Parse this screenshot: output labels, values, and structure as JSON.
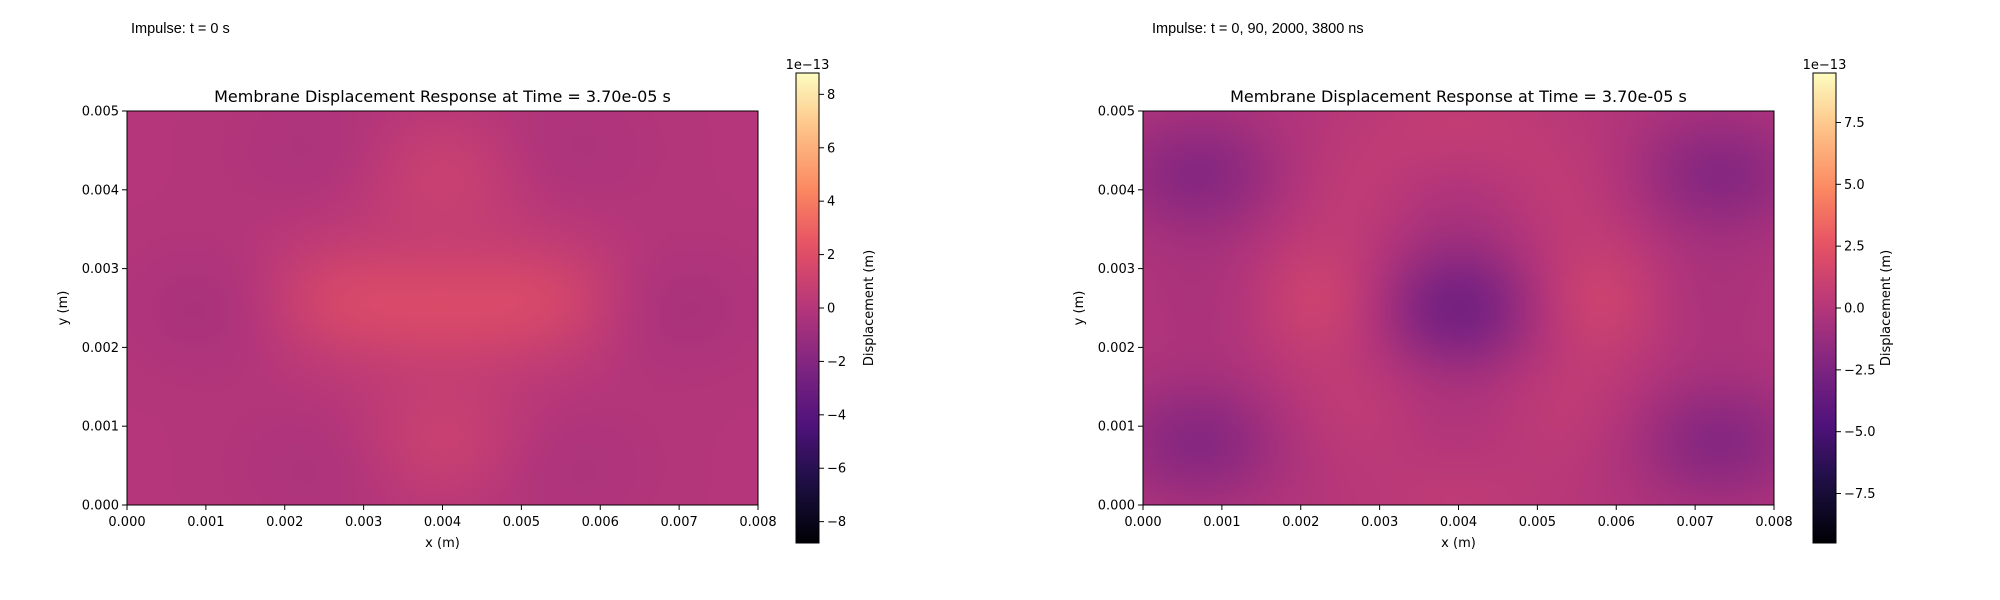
{
  "panels": [
    {
      "impulse_label": "Impulse: t = 0 s"
    },
    {
      "impulse_label": "Impulse: t = 0, 90, 2000, 3800 ns"
    }
  ],
  "chart_data": [
    {
      "type": "heatmap",
      "title": "Membrane Displacement Response at Time = 3.70e-05 s",
      "xlabel": "x (m)",
      "ylabel": "y (m)",
      "xlim": [
        0.0,
        0.008
      ],
      "ylim": [
        0.0,
        0.005
      ],
      "x_ticks": [
        "0.000",
        "0.001",
        "0.002",
        "0.003",
        "0.004",
        "0.005",
        "0.006",
        "0.007",
        "0.008"
      ],
      "y_ticks": [
        "0.000",
        "0.001",
        "0.002",
        "0.003",
        "0.004",
        "0.005"
      ],
      "colormap": "magma",
      "colorbar": {
        "label": "Displacement (m)",
        "offset": "1e−13",
        "vmin": -8.8,
        "vmax": 8.8,
        "ticks": [
          -8,
          -6,
          -4,
          -2,
          0,
          2,
          4,
          6,
          8
        ],
        "tick_labels": [
          "−8",
          "−6",
          "−4",
          "−2",
          "0",
          "2",
          "4",
          "6",
          "8"
        ]
      },
      "field_samples": [
        {
          "x": 0.004,
          "y": 0.0025,
          "value": 1.2
        },
        {
          "x": 0.0026,
          "y": 0.0026,
          "value": 1.3
        },
        {
          "x": 0.0054,
          "y": 0.0026,
          "value": 1.3
        },
        {
          "x": 0.004,
          "y": 0.0042,
          "value": 1.0
        },
        {
          "x": 0.004,
          "y": 0.0008,
          "value": 1.0
        },
        {
          "x": 0.0012,
          "y": 0.0025,
          "value": -0.6
        },
        {
          "x": 0.0068,
          "y": 0.0025,
          "value": -0.6
        },
        {
          "x": 0.0025,
          "y": 0.0045,
          "value": -0.4
        },
        {
          "x": 0.0055,
          "y": 0.0045,
          "value": -0.4
        },
        {
          "x": 0.0025,
          "y": 0.0005,
          "value": -0.4
        },
        {
          "x": 0.0055,
          "y": 0.0005,
          "value": -0.4
        }
      ]
    },
    {
      "type": "heatmap",
      "title": "Membrane Displacement Response at Time = 3.70e-05 s",
      "xlabel": "x (m)",
      "ylabel": "y (m)",
      "xlim": [
        0.0,
        0.008
      ],
      "ylim": [
        0.0,
        0.005
      ],
      "x_ticks": [
        "0.000",
        "0.001",
        "0.002",
        "0.003",
        "0.004",
        "0.005",
        "0.006",
        "0.007",
        "0.008"
      ],
      "y_ticks": [
        "0.000",
        "0.001",
        "0.002",
        "0.003",
        "0.004",
        "0.005"
      ],
      "colormap": "magma",
      "colorbar": {
        "label": "Displacement (m)",
        "offset": "1e−13",
        "vmin": -9.5,
        "vmax": 9.5,
        "ticks": [
          -7.5,
          -5.0,
          -2.5,
          0.0,
          2.5,
          5.0,
          7.5
        ],
        "tick_labels": [
          "−7.5",
          "−5.0",
          "−2.5",
          "0.0",
          "2.5",
          "5.0",
          "7.5"
        ]
      },
      "field_samples": [
        {
          "x": 0.004,
          "y": 0.0025,
          "value": -3.0
        },
        {
          "x": 0.0021,
          "y": 0.0026,
          "value": 1.8
        },
        {
          "x": 0.0059,
          "y": 0.0026,
          "value": 1.8
        },
        {
          "x": 0.004,
          "y": 0.004,
          "value": -0.8
        },
        {
          "x": 0.004,
          "y": 0.0008,
          "value": -0.8
        },
        {
          "x": 0.004,
          "y": 0.0047,
          "value": 0.8
        },
        {
          "x": 0.004,
          "y": 0.0003,
          "value": 0.8
        },
        {
          "x": 0.0007,
          "y": 0.0042,
          "value": -2.0
        },
        {
          "x": 0.0073,
          "y": 0.0042,
          "value": -2.0
        },
        {
          "x": 0.0007,
          "y": 0.0008,
          "value": -2.0
        },
        {
          "x": 0.0073,
          "y": 0.0008,
          "value": -2.0
        },
        {
          "x": 0.0013,
          "y": 0.0026,
          "value": -1.0
        },
        {
          "x": 0.0067,
          "y": 0.0026,
          "value": -1.0
        },
        {
          "x": 0.0028,
          "y": 0.004,
          "value": 0.6
        },
        {
          "x": 0.0052,
          "y": 0.004,
          "value": 0.6
        },
        {
          "x": 0.0028,
          "y": 0.0012,
          "value": 0.6
        },
        {
          "x": 0.0052,
          "y": 0.0012,
          "value": 0.6
        }
      ]
    }
  ]
}
